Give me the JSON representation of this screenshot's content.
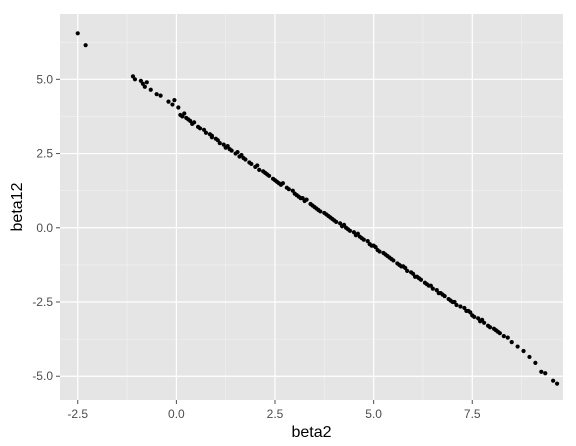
{
  "chart_data": {
    "type": "scatter",
    "title": "",
    "xlabel": "beta2",
    "ylabel": "beta12",
    "xlim": [
      -2.95,
      9.8
    ],
    "ylim": [
      -5.8,
      7.2
    ],
    "x_ticks": [
      -2.5,
      0.0,
      2.5,
      5.0,
      7.5
    ],
    "x_tick_labels": [
      "-2.5",
      "0.0",
      "2.5",
      "5.0",
      "7.5"
    ],
    "y_ticks": [
      -5.0,
      -2.5,
      0.0,
      2.5,
      5.0
    ],
    "y_tick_labels": [
      "-5.0",
      "-2.5",
      "0.0",
      "2.5",
      "5.0"
    ],
    "grid": true,
    "colors": {
      "panel": "#e5e5e5",
      "grid_major": "#ffffff",
      "grid_minor": "#f2f2f2",
      "point": "#000000"
    },
    "series": [
      {
        "points": [
          [
            -2.5,
            6.55
          ],
          [
            -2.3,
            6.15
          ],
          [
            -1.1,
            5.1
          ],
          [
            -1.05,
            5.0
          ],
          [
            -0.9,
            4.95
          ],
          [
            -0.85,
            4.85
          ],
          [
            -0.8,
            4.75
          ],
          [
            -0.75,
            4.9
          ],
          [
            -0.65,
            4.65
          ],
          [
            -0.5,
            4.5
          ],
          [
            -0.4,
            4.45
          ],
          [
            -0.2,
            4.25
          ],
          [
            -0.1,
            4.15
          ],
          [
            -0.05,
            4.3
          ],
          [
            0.05,
            4.05
          ],
          [
            0.1,
            3.8
          ],
          [
            0.15,
            3.75
          ],
          [
            0.2,
            3.85
          ],
          [
            0.25,
            3.7
          ],
          [
            0.3,
            3.65
          ],
          [
            0.35,
            3.6
          ],
          [
            0.4,
            3.5
          ],
          [
            0.45,
            3.55
          ],
          [
            0.55,
            3.4
          ],
          [
            0.6,
            3.35
          ],
          [
            0.7,
            3.3
          ],
          [
            0.75,
            3.2
          ],
          [
            0.85,
            3.15
          ],
          [
            0.9,
            3.05
          ],
          [
            1.0,
            3.0
          ],
          [
            1.05,
            2.95
          ],
          [
            1.1,
            2.85
          ],
          [
            1.2,
            2.8
          ],
          [
            1.3,
            2.75
          ],
          [
            1.35,
            2.65
          ],
          [
            1.4,
            2.6
          ],
          [
            1.5,
            2.5
          ],
          [
            1.55,
            2.55
          ],
          [
            1.6,
            2.4
          ],
          [
            1.7,
            2.35
          ],
          [
            1.75,
            2.3
          ],
          [
            1.85,
            2.2
          ],
          [
            1.9,
            2.15
          ],
          [
            2.0,
            2.05
          ],
          [
            2.05,
            2.1
          ],
          [
            2.1,
            1.95
          ],
          [
            2.2,
            1.9
          ],
          [
            2.3,
            1.8
          ],
          [
            2.35,
            1.75
          ],
          [
            2.45,
            1.65
          ],
          [
            2.5,
            1.6
          ],
          [
            2.55,
            1.55
          ],
          [
            2.65,
            1.45
          ],
          [
            2.7,
            1.5
          ],
          [
            2.8,
            1.35
          ],
          [
            2.85,
            1.3
          ],
          [
            2.95,
            1.25
          ],
          [
            3.0,
            1.15
          ],
          [
            3.05,
            1.1
          ],
          [
            3.1,
            1.05
          ],
          [
            3.2,
            1.0
          ],
          [
            3.25,
            0.9
          ],
          [
            3.3,
            0.95
          ],
          [
            3.4,
            0.8
          ],
          [
            3.45,
            0.75
          ],
          [
            3.5,
            0.7
          ],
          [
            3.6,
            0.6
          ],
          [
            3.65,
            0.55
          ],
          [
            3.75,
            0.5
          ],
          [
            3.8,
            0.45
          ],
          [
            3.85,
            0.4
          ],
          [
            3.95,
            0.3
          ],
          [
            4.0,
            0.25
          ],
          [
            4.05,
            0.2
          ],
          [
            4.15,
            0.15
          ],
          [
            4.2,
            0.05
          ],
          [
            4.25,
            0.1
          ],
          [
            4.35,
            -0.05
          ],
          [
            4.4,
            -0.1
          ],
          [
            4.5,
            -0.15
          ],
          [
            4.55,
            -0.25
          ],
          [
            4.6,
            -0.2
          ],
          [
            4.7,
            -0.35
          ],
          [
            4.75,
            -0.4
          ],
          [
            4.85,
            -0.45
          ],
          [
            4.9,
            -0.55
          ],
          [
            4.95,
            -0.6
          ],
          [
            5.05,
            -0.65
          ],
          [
            5.1,
            -0.75
          ],
          [
            5.15,
            -0.8
          ],
          [
            5.25,
            -0.85
          ],
          [
            5.3,
            -0.9
          ],
          [
            5.4,
            -1.0
          ],
          [
            5.45,
            -1.05
          ],
          [
            5.5,
            -1.1
          ],
          [
            5.6,
            -1.2
          ],
          [
            5.65,
            -1.25
          ],
          [
            5.7,
            -1.3
          ],
          [
            5.8,
            -1.35
          ],
          [
            5.85,
            -1.45
          ],
          [
            5.95,
            -1.5
          ],
          [
            6.0,
            -1.55
          ],
          [
            6.05,
            -1.65
          ],
          [
            6.15,
            -1.7
          ],
          [
            6.2,
            -1.75
          ],
          [
            6.3,
            -1.85
          ],
          [
            6.35,
            -1.9
          ],
          [
            6.45,
            -1.95
          ],
          [
            6.5,
            -2.05
          ],
          [
            6.6,
            -2.1
          ],
          [
            6.65,
            -2.2
          ],
          [
            6.75,
            -2.25
          ],
          [
            6.8,
            -2.3
          ],
          [
            6.9,
            -2.4
          ],
          [
            6.95,
            -2.45
          ],
          [
            7.05,
            -2.5
          ],
          [
            7.1,
            -2.6
          ],
          [
            7.2,
            -2.65
          ],
          [
            7.3,
            -2.7
          ],
          [
            7.35,
            -2.8
          ],
          [
            7.45,
            -2.85
          ],
          [
            7.5,
            -2.95
          ],
          [
            7.55,
            -3.0
          ],
          [
            7.65,
            -3.05
          ],
          [
            7.7,
            -3.15
          ],
          [
            7.8,
            -3.2
          ],
          [
            7.9,
            -3.3
          ],
          [
            7.95,
            -3.35
          ],
          [
            8.05,
            -3.4
          ],
          [
            8.15,
            -3.5
          ],
          [
            8.2,
            -3.55
          ],
          [
            8.3,
            -3.65
          ],
          [
            8.4,
            -3.7
          ],
          [
            8.5,
            -3.85
          ],
          [
            8.65,
            -4.0
          ],
          [
            8.8,
            -4.15
          ],
          [
            8.95,
            -4.35
          ],
          [
            9.1,
            -4.55
          ],
          [
            9.25,
            -4.85
          ],
          [
            9.35,
            -4.9
          ],
          [
            9.55,
            -5.15
          ],
          [
            9.65,
            -5.25
          ],
          [
            0.9,
            3.1
          ],
          [
            1.25,
            2.7
          ],
          [
            1.65,
            2.45
          ],
          [
            2.25,
            1.85
          ],
          [
            2.6,
            1.5
          ],
          [
            3.15,
            1.0
          ],
          [
            3.55,
            0.65
          ],
          [
            3.9,
            0.35
          ],
          [
            4.3,
            0.0
          ],
          [
            4.65,
            -0.3
          ],
          [
            5.0,
            -0.6
          ],
          [
            5.35,
            -0.95
          ],
          [
            5.75,
            -1.3
          ],
          [
            6.1,
            -1.65
          ],
          [
            6.4,
            -1.95
          ],
          [
            6.7,
            -2.2
          ],
          [
            7.0,
            -2.5
          ],
          [
            7.4,
            -2.8
          ],
          [
            7.75,
            -3.1
          ],
          [
            8.1,
            -3.45
          ]
        ]
      }
    ]
  }
}
